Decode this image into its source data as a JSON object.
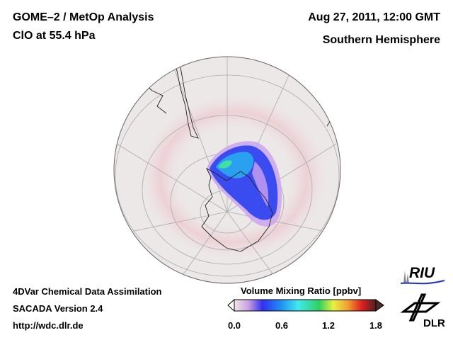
{
  "header": {
    "title": "GOME–2 / MetOp Analysis",
    "subtitle": "ClO at 55.4 hPa",
    "date": "Aug 27, 2011, 12:00 GMT",
    "region": "Southern Hemisphere"
  },
  "footer": {
    "line1": "4DVar Chemical Data Assimilation",
    "line2": "SACADA Version 2.4",
    "line3": "http://wdc.dlr.de"
  },
  "colorbar": {
    "title": "Volume Mixing Ratio [ppbv]",
    "ticks": [
      "0.0",
      "0.6",
      "1.2",
      "1.8"
    ],
    "min": 0.0,
    "max": 1.8,
    "colors": [
      "#f2e6e6",
      "#c8a0e0",
      "#3030f0",
      "#2080f0",
      "#40e0f0",
      "#30d060",
      "#e0f040",
      "#f0a030",
      "#e02020",
      "#502020"
    ]
  },
  "logos": {
    "riu": "RIU",
    "dlr": "DLR"
  }
}
